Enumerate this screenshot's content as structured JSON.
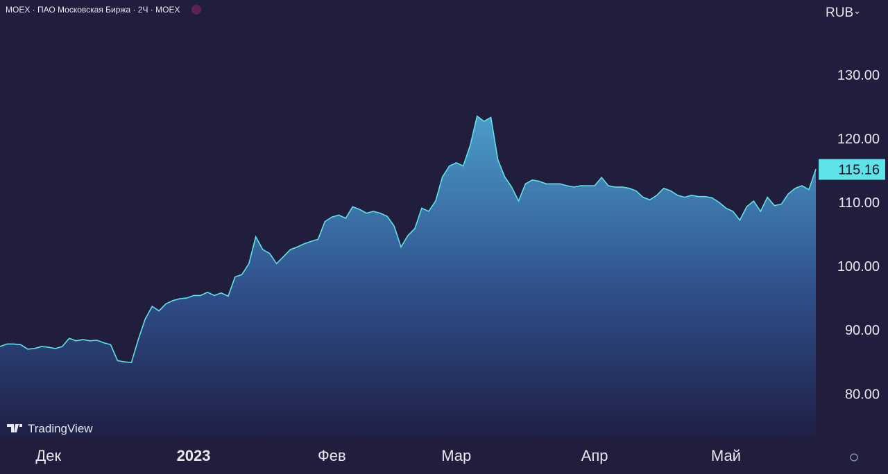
{
  "chart_data": {
    "type": "area",
    "title": "MOEX · ПАО Московская Биржа · 2Ч · MOEX",
    "currency": "RUB",
    "watermark": "TradingView",
    "categories": [
      null,
      null,
      null,
      null,
      null,
      null,
      null,
      "Дек",
      null,
      null,
      null,
      null,
      null,
      null,
      null,
      null,
      null,
      null,
      null,
      null,
      null,
      null,
      null,
      null,
      null,
      null,
      null,
      null,
      "2023",
      null,
      null,
      null,
      null,
      null,
      null,
      null,
      null,
      null,
      null,
      null,
      null,
      null,
      null,
      null,
      null,
      null,
      null,
      null,
      "Фев",
      null,
      null,
      null,
      null,
      null,
      null,
      null,
      null,
      null,
      null,
      null,
      null,
      null,
      null,
      null,
      null,
      null,
      "Мар",
      null,
      null,
      null,
      null,
      null,
      null,
      null,
      null,
      null,
      null,
      null,
      null,
      null,
      null,
      null,
      null,
      null,
      null,
      null,
      "Апр",
      null,
      null,
      null,
      null,
      null,
      null,
      null,
      null,
      null,
      null,
      null,
      null,
      null,
      null,
      null,
      null,
      null,
      null,
      "Май",
      null,
      null,
      null,
      null,
      null,
      null,
      null,
      null,
      null,
      null,
      null,
      null,
      null
    ],
    "series": [
      {
        "name": "MOEX",
        "color": "#5ee3e8",
        "values": [
          87.4,
          87.8,
          87.8,
          87.7,
          87.0,
          87.1,
          87.4,
          87.3,
          87.1,
          87.4,
          88.7,
          88.3,
          88.5,
          88.3,
          88.4,
          88.0,
          87.7,
          85.2,
          85.0,
          84.9,
          88.5,
          91.7,
          93.7,
          93.0,
          94.1,
          94.6,
          94.9,
          95.0,
          95.4,
          95.4,
          95.9,
          95.4,
          95.8,
          95.3,
          98.3,
          98.7,
          100.4,
          104.6,
          102.6,
          102.0,
          100.4,
          101.5,
          102.6,
          103.0,
          103.5,
          103.9,
          104.2,
          107.0,
          107.7,
          108.0,
          107.5,
          109.3,
          108.9,
          108.3,
          108.6,
          108.3,
          107.8,
          106.3,
          103.0,
          104.8,
          105.9,
          109.1,
          108.6,
          110.2,
          114.0,
          115.7,
          116.2,
          115.7,
          118.9,
          123.5,
          122.7,
          123.3,
          116.7,
          114.0,
          112.4,
          110.2,
          112.9,
          113.5,
          113.3,
          112.9,
          112.9,
          112.9,
          112.6,
          112.4,
          112.6,
          112.6,
          112.6,
          113.9,
          112.6,
          112.4,
          112.4,
          112.2,
          111.8,
          110.8,
          110.4,
          111.1,
          112.2,
          111.8,
          111.1,
          110.8,
          111.1,
          110.9,
          110.9,
          110.7,
          110.0,
          109.1,
          108.6,
          107.2,
          109.3,
          110.2,
          108.6,
          110.8,
          109.5,
          109.7,
          111.3,
          112.2,
          112.6,
          112.0,
          115.2
        ]
      }
    ],
    "last_value": 115.16,
    "ylim": [
      73.3,
      141.7
    ],
    "yticks": [
      {
        "value": 80,
        "label": "80.00"
      },
      {
        "value": 90,
        "label": "90.00"
      },
      {
        "value": 100,
        "label": "100.00"
      },
      {
        "value": 110,
        "label": "110.00"
      },
      {
        "value": 120,
        "label": "120.00"
      },
      {
        "value": 130,
        "label": "130.00"
      }
    ],
    "grid": false
  }
}
